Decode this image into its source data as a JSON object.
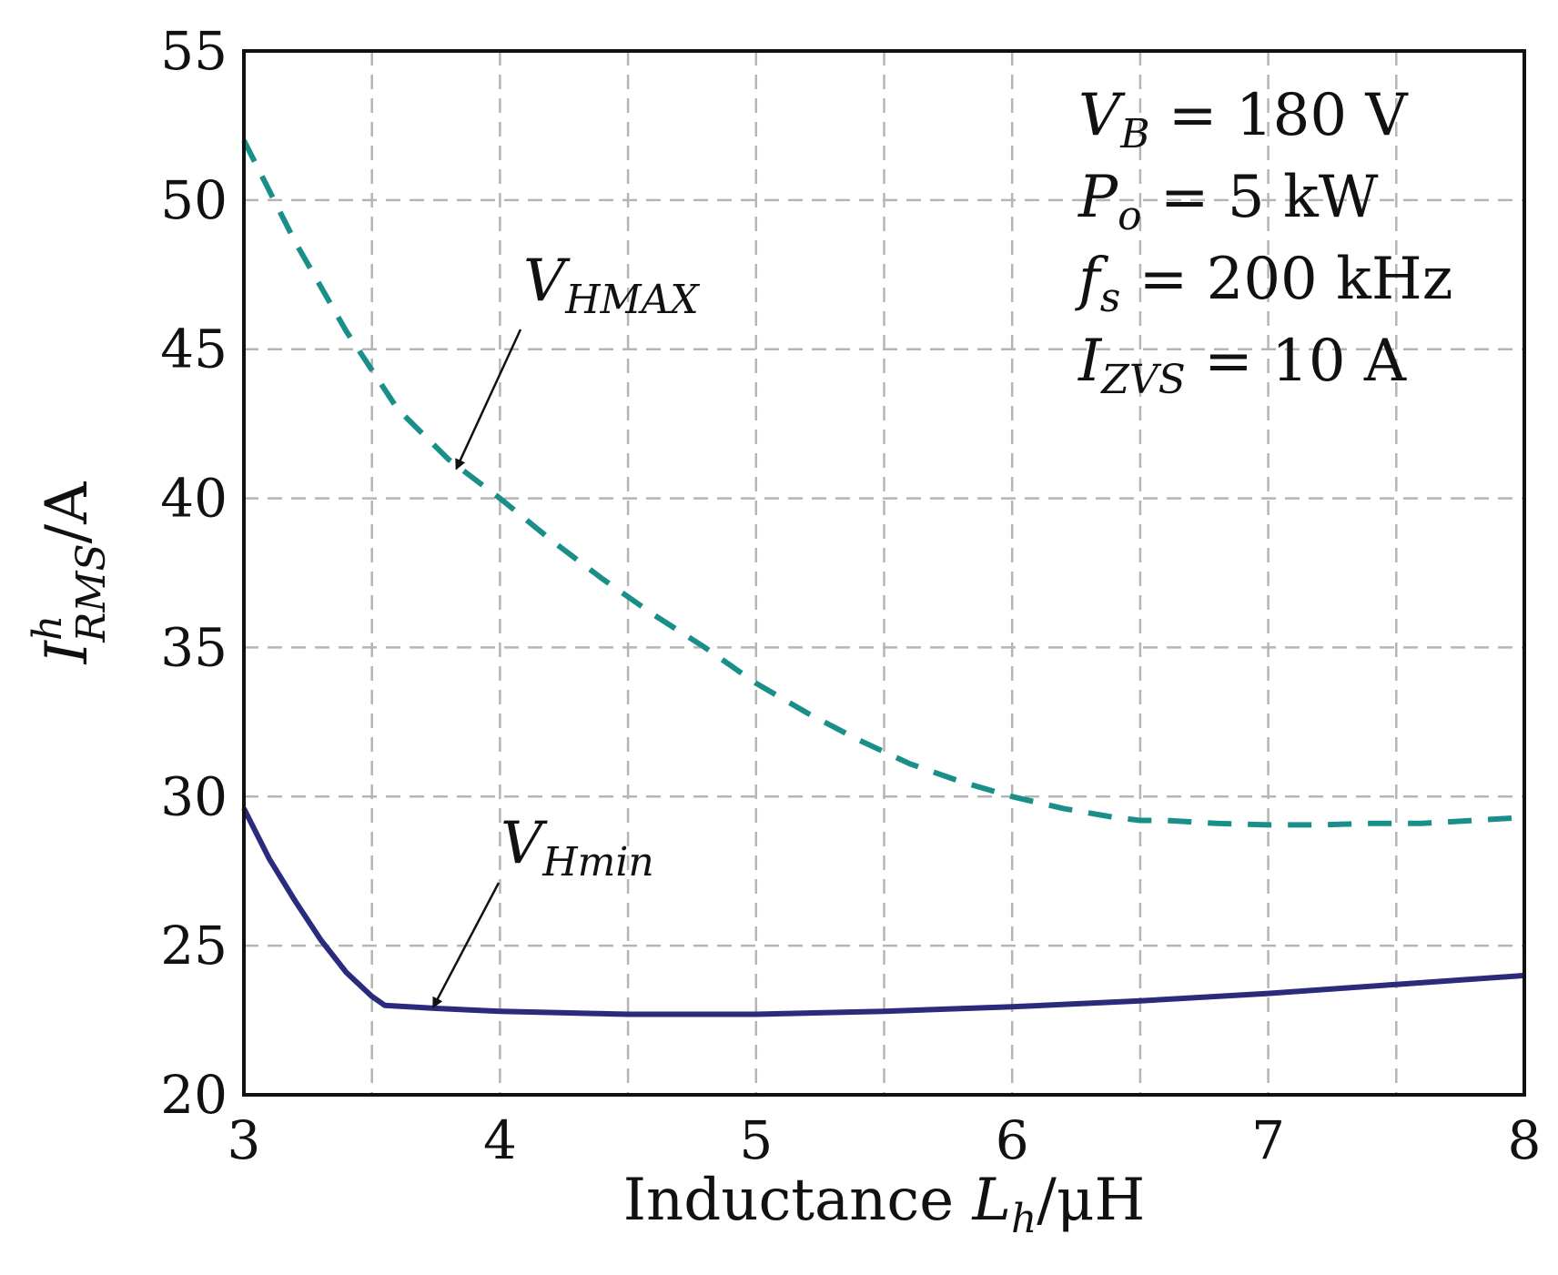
{
  "chart_data": {
    "type": "line",
    "xlabel": {
      "text": "Inductance ",
      "var": "L",
      "var_sub": "h",
      "unit": "/μH"
    },
    "ylabel": {
      "var": "I",
      "var_sup": "h",
      "var_sub": "RMS",
      "unit": "/A"
    },
    "xlim": [
      3,
      8
    ],
    "ylim": [
      20,
      55
    ],
    "x_ticks": [
      3,
      4,
      5,
      6,
      7,
      8
    ],
    "y_ticks": [
      20,
      25,
      30,
      35,
      40,
      45,
      50,
      55
    ],
    "x_grid": [
      3.5,
      4,
      4.5,
      5,
      5.5,
      6,
      6.5,
      7,
      7.5
    ],
    "y_grid": [
      25,
      30,
      35,
      40,
      45,
      50
    ],
    "grid": true,
    "series": [
      {
        "name": "V_HMAX",
        "color": "#1a8f8a",
        "style": "dashed",
        "x": [
          3.0,
          3.2,
          3.4,
          3.6,
          3.8,
          4.0,
          4.2,
          4.4,
          4.6,
          4.8,
          5.0,
          5.2,
          5.4,
          5.6,
          5.8,
          6.0,
          6.2,
          6.4,
          6.5,
          6.6,
          6.8,
          7.0,
          7.2,
          7.4,
          7.6,
          7.8,
          8.0
        ],
        "y": [
          52.0,
          48.6,
          45.6,
          43.0,
          41.3,
          40.0,
          38.6,
          37.3,
          36.1,
          35.0,
          33.8,
          32.8,
          31.9,
          31.1,
          30.5,
          30.0,
          29.6,
          29.3,
          29.2,
          29.2,
          29.1,
          29.05,
          29.05,
          29.1,
          29.1,
          29.2,
          29.3
        ]
      },
      {
        "name": "V_Hmin",
        "color": "#2b2b7e",
        "style": "solid",
        "x": [
          3.0,
          3.1,
          3.2,
          3.3,
          3.4,
          3.5,
          3.55,
          3.75,
          4.0,
          4.25,
          4.5,
          5.0,
          5.5,
          6.0,
          6.5,
          7.0,
          7.5,
          8.0
        ],
        "y": [
          29.6,
          27.9,
          26.5,
          25.2,
          24.1,
          23.3,
          23.0,
          22.9,
          22.8,
          22.75,
          22.7,
          22.7,
          22.8,
          22.95,
          23.15,
          23.4,
          23.7,
          24.0
        ]
      }
    ],
    "annotations": {
      "vhmax": {
        "main": "V",
        "sub": "HMAX"
      },
      "vhmin": {
        "main": "V",
        "sub": "Hmin"
      },
      "params": [
        {
          "var": "V",
          "sub": "B",
          "rest": " = 180 V"
        },
        {
          "var": "P",
          "sub": "o",
          "rest": " = 5 kW"
        },
        {
          "var": "f",
          "sub": "s",
          "rest": " = 200 kHz"
        },
        {
          "var": "I",
          "sub": "ZVS",
          "rest": " = 10 A"
        }
      ]
    }
  }
}
